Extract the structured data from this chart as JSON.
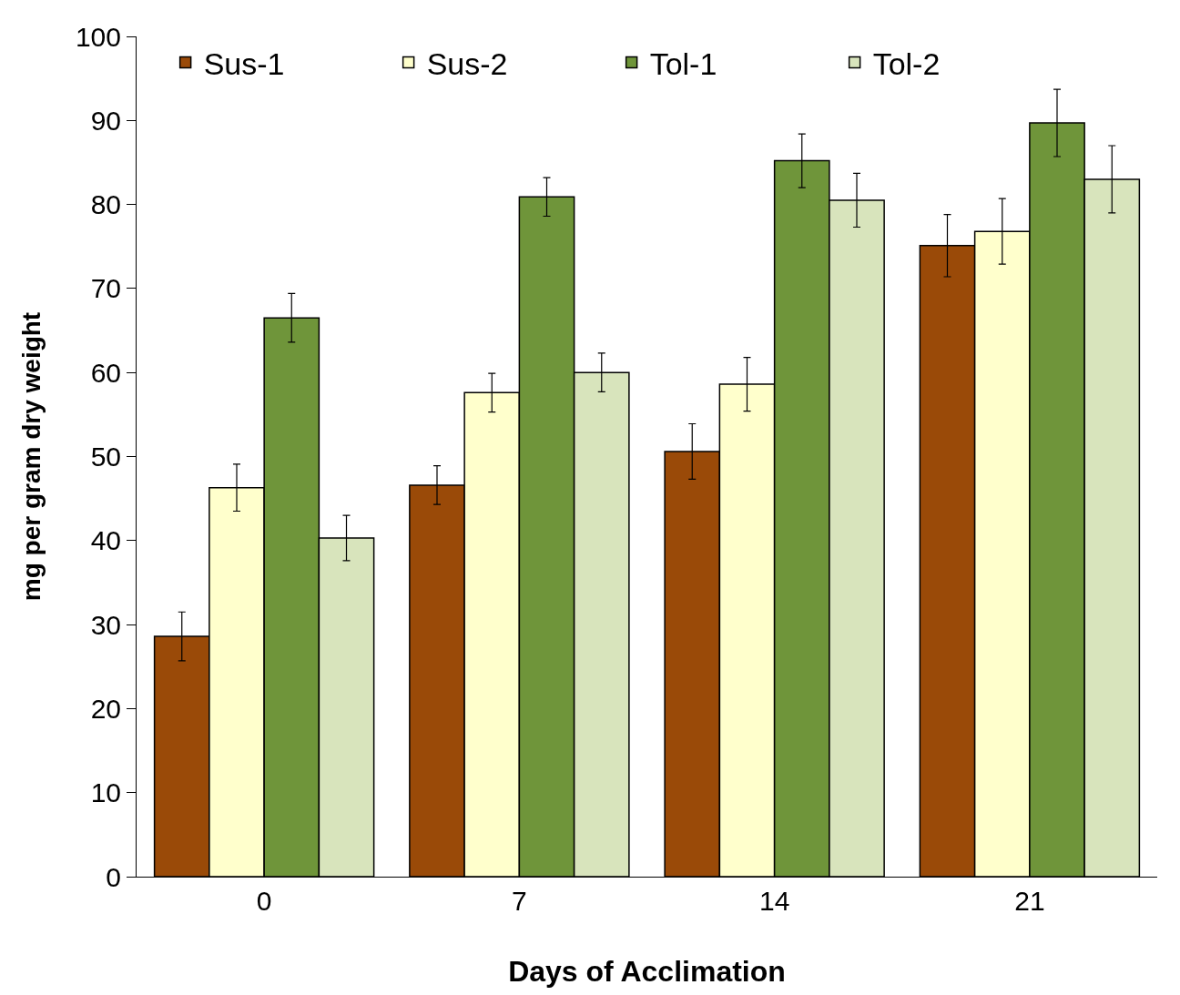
{
  "chart_data": {
    "type": "bar",
    "xlabel": "Days of Acclimation",
    "ylabel": "mg per gram dry weight",
    "categories": [
      "0",
      "7",
      "14",
      "21"
    ],
    "series": [
      {
        "name": "Sus-1",
        "color": "#9a4a08",
        "values": [
          28.6,
          46.6,
          50.6,
          75.1
        ],
        "errors": [
          2.9,
          2.3,
          3.3,
          3.7
        ]
      },
      {
        "name": "Sus-2",
        "color": "#ffffcc",
        "values": [
          46.3,
          57.6,
          58.6,
          76.8
        ],
        "errors": [
          2.8,
          2.3,
          3.2,
          3.9
        ]
      },
      {
        "name": "Tol-1",
        "color": "#6f953a",
        "values": [
          66.5,
          80.9,
          85.2,
          89.7
        ],
        "errors": [
          2.9,
          2.3,
          3.2,
          4.0
        ]
      },
      {
        "name": "Tol-2",
        "color": "#d8e4bc",
        "values": [
          40.3,
          60.0,
          80.5,
          83.0
        ],
        "errors": [
          2.7,
          2.3,
          3.2,
          4.0
        ]
      }
    ],
    "ylim": [
      0,
      100
    ],
    "yticks": [
      0,
      10,
      20,
      30,
      40,
      50,
      60,
      70,
      80,
      90,
      100
    ],
    "legend": "top left"
  }
}
